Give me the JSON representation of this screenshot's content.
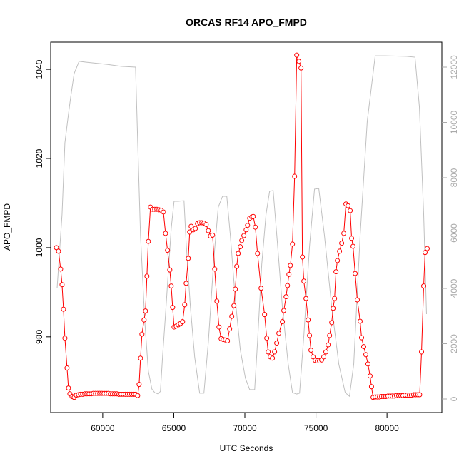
{
  "chart_data": {
    "type": "line",
    "title": "ORCAS RF14 APO_FMPD",
    "x_label": "UTC Seconds",
    "y_label": "APO_FMPD",
    "xlim": [
      56340,
      83860
    ],
    "xticks": [
      60000,
      65000,
      70000,
      75000,
      80000
    ],
    "ylim": [
      963.0,
      1046.1
    ],
    "yticks": [
      980,
      1000,
      1020,
      1040
    ],
    "y2lim": [
      -490,
      12903
    ],
    "y2ticks": [
      0,
      2000,
      4000,
      6000,
      8000,
      10000,
      12000
    ],
    "grid": false,
    "series": [
      {
        "color": "#ff0000",
        "axis": "y",
        "mode": "lines+markers",
        "x": [
          56740,
          56890,
          57040,
          57140,
          57240,
          57340,
          57490,
          57590,
          57690,
          57840,
          57990,
          58140,
          58290,
          58440,
          58590,
          58740,
          58890,
          59040,
          59190,
          59340,
          59490,
          59640,
          59790,
          59940,
          60090,
          60240,
          60390,
          60540,
          60690,
          60840,
          60990,
          61140,
          61290,
          61440,
          61590,
          61740,
          61890,
          62040,
          62190,
          62310,
          62460,
          62560,
          62660,
          62760,
          62910,
          63010,
          63110,
          63210,
          63360,
          63510,
          63660,
          63810,
          63960,
          64110,
          64270,
          64420,
          64560,
          64720,
          64820,
          64920,
          65020,
          65170,
          65320,
          65470,
          65620,
          65770,
          65870,
          66020,
          66120,
          66220,
          66370,
          66520,
          66670,
          66820,
          66970,
          67120,
          67280,
          67430,
          67580,
          67730,
          67880,
          68030,
          68180,
          68330,
          68480,
          68630,
          68780,
          68930,
          69080,
          69230,
          69330,
          69430,
          69530,
          69680,
          69780,
          69930,
          70090,
          70190,
          70340,
          70490,
          70590,
          70740,
          70890,
          71140,
          71390,
          71540,
          71640,
          71790,
          71940,
          72090,
          72240,
          72390,
          72640,
          72740,
          72900,
          73000,
          73100,
          73200,
          73350,
          73500,
          73650,
          73800,
          73950,
          74050,
          74150,
          74300,
          74450,
          74550,
          74650,
          74800,
          74950,
          75100,
          75250,
          75400,
          75550,
          75700,
          75860,
          75960,
          76110,
          76210,
          76310,
          76410,
          76510,
          76660,
          76810,
          76960,
          77110,
          77260,
          77410,
          77510,
          77610,
          77760,
          77910,
          78110,
          78210,
          78360,
          78510,
          78660,
          78810,
          78910,
          79020,
          79170,
          79320,
          79470,
          79620,
          79770,
          79920,
          80070,
          80220,
          80370,
          80520,
          80670,
          80820,
          80970,
          81120,
          81270,
          81420,
          81570,
          81720,
          81870,
          82020,
          82170,
          82300,
          82430,
          82580,
          82680,
          82830
        ],
        "values": [
          1000,
          999.2,
          995.2,
          991.7,
          986.2,
          979.7,
          973,
          968.5,
          967.2,
          966.6,
          966.4,
          966.9,
          967.0,
          967.1,
          967.1,
          967.2,
          967.2,
          967.2,
          967.2,
          967.3,
          967.3,
          967.3,
          967.3,
          967.3,
          967.3,
          967.3,
          967.3,
          967.2,
          967.2,
          967.2,
          967.2,
          967.1,
          967.1,
          967.1,
          967.1,
          967.1,
          967.1,
          967.1,
          967.1,
          967.1,
          966.8,
          969.3,
          975.2,
          980.6,
          983.8,
          985.8,
          993.6,
          1001.4,
          1009.1,
          1008.6,
          1008.6,
          1008.6,
          1008.5,
          1008.4,
          1008,
          1003.2,
          999.4,
          995,
          991.4,
          986.6,
          982.2,
          982.4,
          982.7,
          983,
          983.4,
          987.2,
          992,
          997.6,
          1003.5,
          1004.8,
          1004,
          1004.3,
          1005.4,
          1005.6,
          1005.6,
          1005.5,
          1005.2,
          1003.8,
          1002.6,
          1002.8,
          995.2,
          988,
          982.2,
          979.6,
          979.4,
          979.3,
          979.1,
          981.8,
          984.6,
          987,
          990.7,
          995.8,
          998.7,
          1000.2,
          1001.6,
          1002.7,
          1004,
          1005,
          1006.6,
          1006.9,
          1007,
          1004.6,
          998.7,
          990.9,
          985,
          979.7,
          976.6,
          975.5,
          975.2,
          976.6,
          978.6,
          980.8,
          983.4,
          985.9,
          989,
          991.5,
          994,
          996,
          1000.8,
          1016,
          1043.2,
          1041.8,
          1040.3,
          997.9,
          992.5,
          988.6,
          983.8,
          980.3,
          977,
          975.5,
          974.7,
          974.6,
          974.6,
          974.8,
          975.5,
          976.6,
          978.2,
          980.3,
          983.2,
          986.4,
          988.6,
          994.6,
          997.1,
          999.2,
          1001,
          1003.2,
          1009.8,
          1009.4,
          1008.3,
          1002.1,
          1000.3,
          994.2,
          988.3,
          983.5,
          979.8,
          977.8,
          976,
          973.9,
          971.2,
          968.8,
          966.4,
          966.5,
          966.5,
          966.5,
          966.6,
          966.6,
          966.6,
          966.7,
          966.7,
          966.7,
          966.7,
          966.8,
          966.8,
          966.8,
          966.8,
          966.9,
          966.9,
          966.9,
          966.9,
          967.0,
          967.0,
          967.0,
          967.0,
          976.6,
          991.4,
          998.9,
          999.8
        ]
      },
      {
        "color": "#c0c0c0",
        "axis": "y2",
        "mode": "lines",
        "x": [
          56790,
          56940,
          57140,
          57340,
          57590,
          57740,
          57990,
          58340,
          58800,
          60300,
          61300,
          62310,
          62460,
          62660,
          62960,
          63210,
          63460,
          63660,
          63910,
          64060,
          64210,
          64420,
          64620,
          64820,
          65020,
          65320,
          65720,
          65870,
          66170,
          66470,
          66820,
          67120,
          67430,
          67830,
          68130,
          68430,
          68730,
          68980,
          69330,
          69680,
          70040,
          70340,
          70690,
          70890,
          71190,
          71490,
          71740,
          71990,
          72290,
          72640,
          73050,
          73350,
          73650,
          73850,
          74150,
          74550,
          74900,
          75200,
          75600,
          76110,
          76610,
          77060,
          77360,
          77660,
          78110,
          78610,
          79170,
          79870,
          81370,
          81970,
          82280,
          82580,
          82780
        ],
        "values": [
          4000,
          5140,
          6680,
          9260,
          10300,
          10890,
          11770,
          12210,
          12180,
          12100,
          12030,
          12000,
          9320,
          5910,
          2810,
          1010,
          360,
          230,
          180,
          280,
          1520,
          3070,
          4620,
          6170,
          7150,
          7150,
          7170,
          5650,
          3330,
          1520,
          210,
          210,
          2040,
          5140,
          6940,
          7330,
          7330,
          5910,
          3590,
          1780,
          750,
          340,
          340,
          2040,
          4880,
          6680,
          7510,
          7540,
          5650,
          3330,
          1260,
          230,
          180,
          210,
          2300,
          5520,
          7590,
          7610,
          5910,
          3330,
          1260,
          230,
          100,
          1260,
          5910,
          10040,
          12410,
          12410,
          12390,
          12360,
          10560,
          6680,
          3070
        ]
      }
    ]
  }
}
